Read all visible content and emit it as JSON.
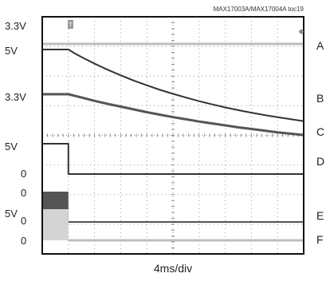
{
  "chart_data": {
    "type": "line",
    "title": "MAX17003A/MAX17004A toc19",
    "xlabel": "4ms/div",
    "x_divisions": 10,
    "y_divisions": 8,
    "grid": true,
    "t_ms": [
      -4.0,
      0.0,
      1.0,
      2.0,
      4.0,
      6.0,
      8.0,
      10.0,
      12.0,
      14.0,
      16.0,
      18.0,
      20.0,
      22.0,
      24.0,
      26.0,
      28.0,
      30.0,
      32.0,
      34.0,
      36.0
    ],
    "series": [
      {
        "name": "A",
        "color": "#bdbdbd",
        "values": [
          3.3,
          3.3,
          3.3,
          3.3,
          3.3,
          3.3,
          3.3,
          3.3,
          3.3,
          3.3,
          3.3,
          3.3,
          3.3,
          3.3,
          3.3,
          3.3,
          3.3,
          3.3,
          3.3,
          3.3,
          3.3
        ]
      },
      {
        "name": "B",
        "color": "#333333",
        "values": [
          5.0,
          5.0,
          4.79,
          4.6,
          4.25,
          3.93,
          3.63,
          3.35,
          3.1,
          2.86,
          2.65,
          2.45,
          2.26,
          2.09,
          1.93,
          1.78,
          1.65,
          1.52,
          1.41,
          1.3,
          1.2
        ]
      },
      {
        "name": "C",
        "color": "#555555",
        "values": [
          3.3,
          3.3,
          3.24,
          3.18,
          3.06,
          2.95,
          2.85,
          2.75,
          2.65,
          2.56,
          2.47,
          2.39,
          2.31,
          2.24,
          2.17,
          2.1,
          2.04,
          1.98,
          1.92,
          1.87,
          1.82
        ]
      },
      {
        "name": "D",
        "color": "#333333",
        "values": [
          5.0,
          5.0,
          0,
          0,
          0,
          0,
          0,
          0,
          0,
          0,
          0,
          0,
          0,
          0,
          0,
          0,
          0,
          0,
          0,
          0,
          0
        ]
      },
      {
        "name": "E",
        "color": "#555555",
        "values": [
          1,
          1,
          0,
          0,
          0,
          0,
          0,
          0,
          0,
          0,
          0,
          0,
          0,
          0,
          0,
          0,
          0,
          0,
          0,
          0,
          0
        ]
      },
      {
        "name": "F",
        "color": "#bdbdbd",
        "values": [
          5.0,
          5.0,
          0,
          0,
          0,
          0,
          0,
          0,
          0,
          0,
          0,
          0,
          0,
          0,
          0,
          0,
          0,
          0,
          0,
          0,
          0
        ]
      }
    ],
    "left_level_labels": [
      "3.3V",
      "5V",
      "3.3V",
      "5V",
      "0",
      "0",
      "0",
      "5V",
      "0"
    ],
    "trace_letters": [
      "A",
      "B",
      "C",
      "D",
      "E",
      "F"
    ]
  }
}
